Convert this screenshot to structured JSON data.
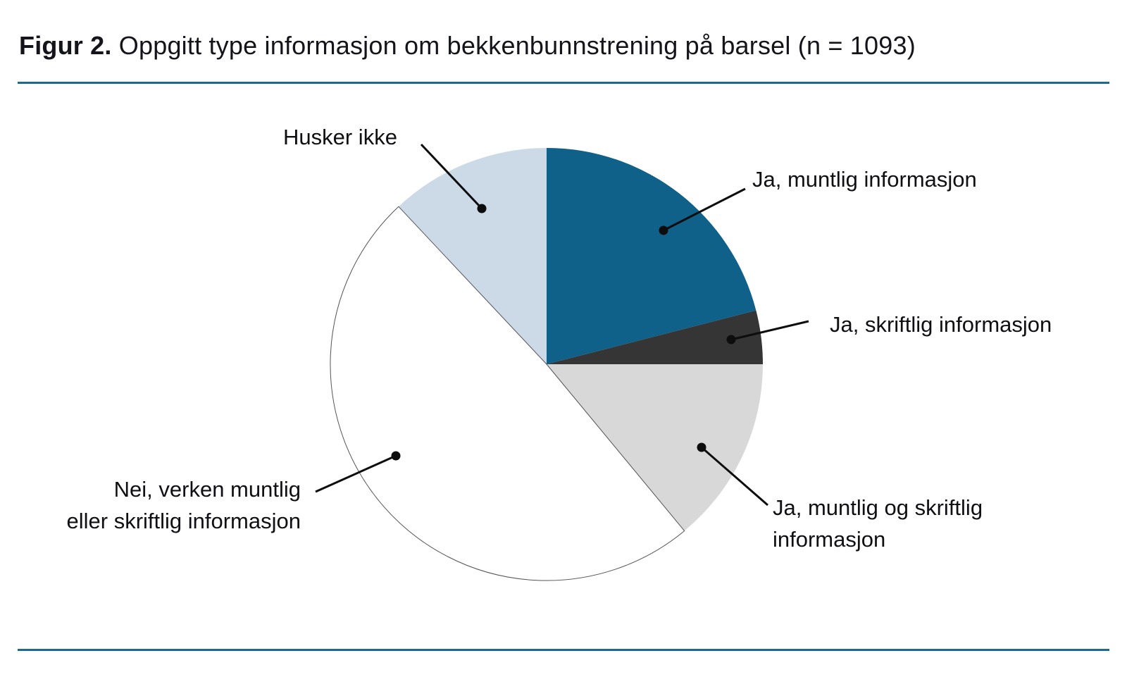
{
  "figure": {
    "title_prefix": "Figur 2.",
    "title_rest": " Oppgitt type informasjon om bekkenbunnstrening på barsel (n = 1093)",
    "rule_color": "#1c6a91",
    "leader_color": "#0d0d0d",
    "label_color": "#101014"
  },
  "chart_data": {
    "type": "pie",
    "title": "Oppgitt type informasjon om bekkenbunnstrening på barsel",
    "n": 1093,
    "start_angle_deg": 0,
    "direction": "clockwise",
    "values_estimated_from_angles": true,
    "legend_position": "callout-labels-around-pie",
    "slices": [
      {
        "label": "Ja, muntlig informasjon",
        "label_lines": [
          "Ja, muntlig informasjon"
        ],
        "value_pct": 21,
        "color": "#0f6189",
        "outlined": false
      },
      {
        "label": "Ja, skriftlig informasjon",
        "label_lines": [
          "Ja, skriftlig informasjon"
        ],
        "value_pct": 4,
        "color": "#353535",
        "outlined": false
      },
      {
        "label": "Ja, muntlig og skriftlig informasjon",
        "label_lines": [
          "Ja, muntlig og skriftlig",
          "informasjon"
        ],
        "value_pct": 14,
        "color": "#d8d8d8",
        "outlined": false
      },
      {
        "label": "Nei, verken muntlig eller skriftlig informasjon",
        "label_lines": [
          "Nei, verken muntlig",
          "eller skriftlig informasjon"
        ],
        "value_pct": 49,
        "color": "#ffffff",
        "outlined": true
      },
      {
        "label": "Husker ikke",
        "label_lines": [
          "Husker ikke"
        ],
        "value_pct": 12,
        "color": "#ccdae8",
        "outlined": false
      }
    ]
  }
}
